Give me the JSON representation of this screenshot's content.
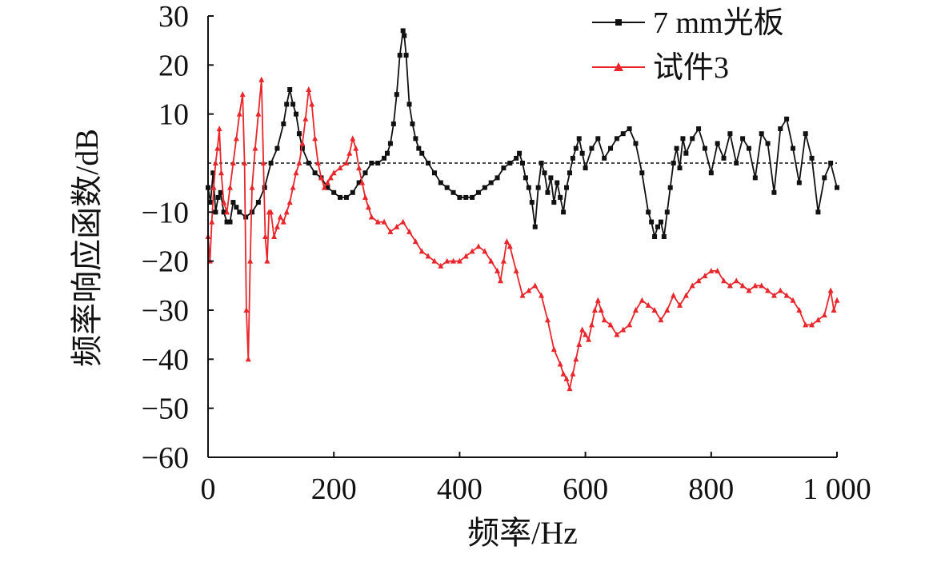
{
  "chart_data": {
    "type": "line",
    "title": "",
    "xlabel": "频率/Hz",
    "ylabel": "频率响应函数/dB",
    "xlim": [
      0,
      1000
    ],
    "ylim": [
      -60,
      30
    ],
    "x_ticks": [
      0,
      200,
      400,
      600,
      800,
      1000
    ],
    "x_tick_labels": [
      "0",
      "200",
      "400",
      "600",
      "800",
      "1 000"
    ],
    "y_ticks": [
      30,
      20,
      10,
      -10,
      -20,
      -30,
      -40,
      -50,
      -60
    ],
    "y_tick_labels": [
      "30",
      "20",
      "10",
      "−10",
      "−20",
      "−30",
      "−40",
      "−50",
      "−60"
    ],
    "reference_line": {
      "y": 0,
      "style": "dashed"
    },
    "legend_position": "top-right",
    "series": [
      {
        "name": "7 mm光板",
        "color": "#111111",
        "marker": "square",
        "x": [
          0,
          4,
          8,
          12,
          16,
          20,
          25,
          30,
          35,
          40,
          45,
          50,
          60,
          70,
          80,
          90,
          100,
          110,
          120,
          125,
          130,
          135,
          140,
          145,
          150,
          160,
          170,
          180,
          190,
          200,
          210,
          220,
          230,
          240,
          250,
          260,
          270,
          280,
          285,
          290,
          295,
          300,
          305,
          310,
          312,
          315,
          320,
          325,
          330,
          335,
          340,
          350,
          360,
          370,
          380,
          390,
          400,
          410,
          420,
          430,
          440,
          450,
          460,
          470,
          480,
          490,
          495,
          500,
          505,
          510,
          515,
          520,
          525,
          530,
          535,
          540,
          545,
          550,
          555,
          560,
          565,
          570,
          575,
          580,
          585,
          590,
          595,
          600,
          610,
          620,
          630,
          640,
          650,
          660,
          670,
          680,
          690,
          700,
          705,
          710,
          715,
          720,
          725,
          730,
          735,
          740,
          745,
          750,
          755,
          760,
          770,
          780,
          790,
          800,
          810,
          820,
          830,
          840,
          850,
          860,
          870,
          880,
          890,
          900,
          910,
          920,
          930,
          940,
          950,
          960,
          970,
          980,
          990,
          1000
        ],
        "y": [
          -5,
          -8,
          -2,
          -10,
          -7,
          -6,
          -10,
          -12,
          -12,
          -8,
          -9,
          -10,
          -11,
          -10,
          -8,
          -5,
          0,
          3,
          8,
          12,
          15,
          12,
          10,
          6,
          3,
          0,
          -2,
          -3,
          -5,
          -6,
          -7,
          -7,
          -6,
          -4,
          -2,
          0,
          0,
          1,
          2,
          4,
          8,
          14,
          22,
          27,
          26,
          22,
          12,
          8,
          5,
          3,
          2,
          0,
          -2,
          -4,
          -5,
          -6,
          -7,
          -7,
          -7,
          -6,
          -5,
          -4,
          -3,
          -1,
          0,
          1,
          2,
          0,
          -3,
          -5,
          -8,
          -13,
          -5,
          0,
          -2,
          -6,
          -3,
          -8,
          -4,
          -7,
          -10,
          -5,
          -2,
          1,
          3,
          5,
          2,
          -1,
          3,
          5,
          1,
          3,
          5,
          6,
          7,
          4,
          -2,
          -10,
          -12,
          -15,
          -13,
          -12,
          -15,
          -10,
          -5,
          0,
          3,
          -1,
          5,
          2,
          5,
          7,
          3,
          -2,
          4,
          1,
          6,
          0,
          5,
          3,
          -3,
          6,
          4,
          -6,
          7,
          9,
          3,
          -4,
          6,
          1,
          -10,
          -3,
          0,
          -5
        ]
      },
      {
        "name": "试件3",
        "color": "#e8262b",
        "marker": "triangle",
        "x": [
          0,
          3,
          6,
          9,
          12,
          15,
          18,
          21,
          25,
          30,
          35,
          40,
          45,
          50,
          55,
          58,
          61,
          64,
          67,
          70,
          75,
          80,
          85,
          88,
          91,
          94,
          97,
          100,
          105,
          110,
          115,
          120,
          125,
          130,
          135,
          140,
          145,
          150,
          155,
          160,
          165,
          170,
          175,
          180,
          185,
          190,
          195,
          200,
          210,
          220,
          225,
          230,
          235,
          240,
          245,
          250,
          255,
          260,
          270,
          280,
          290,
          300,
          310,
          320,
          330,
          340,
          350,
          360,
          370,
          380,
          390,
          400,
          410,
          420,
          430,
          440,
          450,
          460,
          465,
          470,
          475,
          480,
          490,
          500,
          510,
          520,
          530,
          540,
          550,
          560,
          565,
          570,
          575,
          580,
          585,
          590,
          595,
          600,
          605,
          610,
          615,
          620,
          625,
          630,
          640,
          650,
          660,
          670,
          680,
          690,
          700,
          710,
          720,
          730,
          740,
          750,
          760,
          770,
          780,
          790,
          800,
          810,
          820,
          830,
          840,
          850,
          860,
          870,
          880,
          890,
          900,
          910,
          920,
          930,
          940,
          950,
          960,
          970,
          980,
          990,
          995,
          1000
        ],
        "y": [
          -15,
          -20,
          -12,
          -5,
          0,
          3,
          7,
          -2,
          -8,
          -10,
          -5,
          0,
          5,
          10,
          14,
          0,
          -30,
          -40,
          -20,
          -5,
          3,
          10,
          17,
          0,
          -15,
          -20,
          -10,
          -10,
          -15,
          -13,
          -11,
          -12,
          -10,
          -8,
          -5,
          -2,
          0,
          4,
          9,
          15,
          12,
          5,
          0,
          -3,
          -5,
          -4,
          -3,
          -2,
          -1,
          0,
          2,
          5,
          3,
          -1,
          -4,
          -7,
          -9,
          -11,
          -12,
          -12,
          -14,
          -13,
          -12,
          -14,
          -16,
          -18,
          -19,
          -20,
          -21,
          -20,
          -20,
          -20,
          -19,
          -18,
          -17,
          -18,
          -20,
          -22,
          -24,
          -20,
          -16,
          -17,
          -22,
          -27,
          -26,
          -25,
          -27,
          -32,
          -38,
          -41,
          -43,
          -44,
          -46,
          -43,
          -40,
          -37,
          -34,
          -35,
          -36,
          -33,
          -30,
          -28,
          -30,
          -32,
          -33,
          -35,
          -34,
          -33,
          -30,
          -28,
          -29,
          -30,
          -32,
          -30,
          -27,
          -29,
          -27,
          -25,
          -24,
          -23,
          -22,
          -22,
          -24,
          -25,
          -24,
          -25,
          -26,
          -25,
          -25,
          -26,
          -27,
          -26,
          -27,
          -28,
          -30,
          -33,
          -33,
          -32,
          -31,
          -26,
          -30,
          -28
        ]
      }
    ]
  }
}
